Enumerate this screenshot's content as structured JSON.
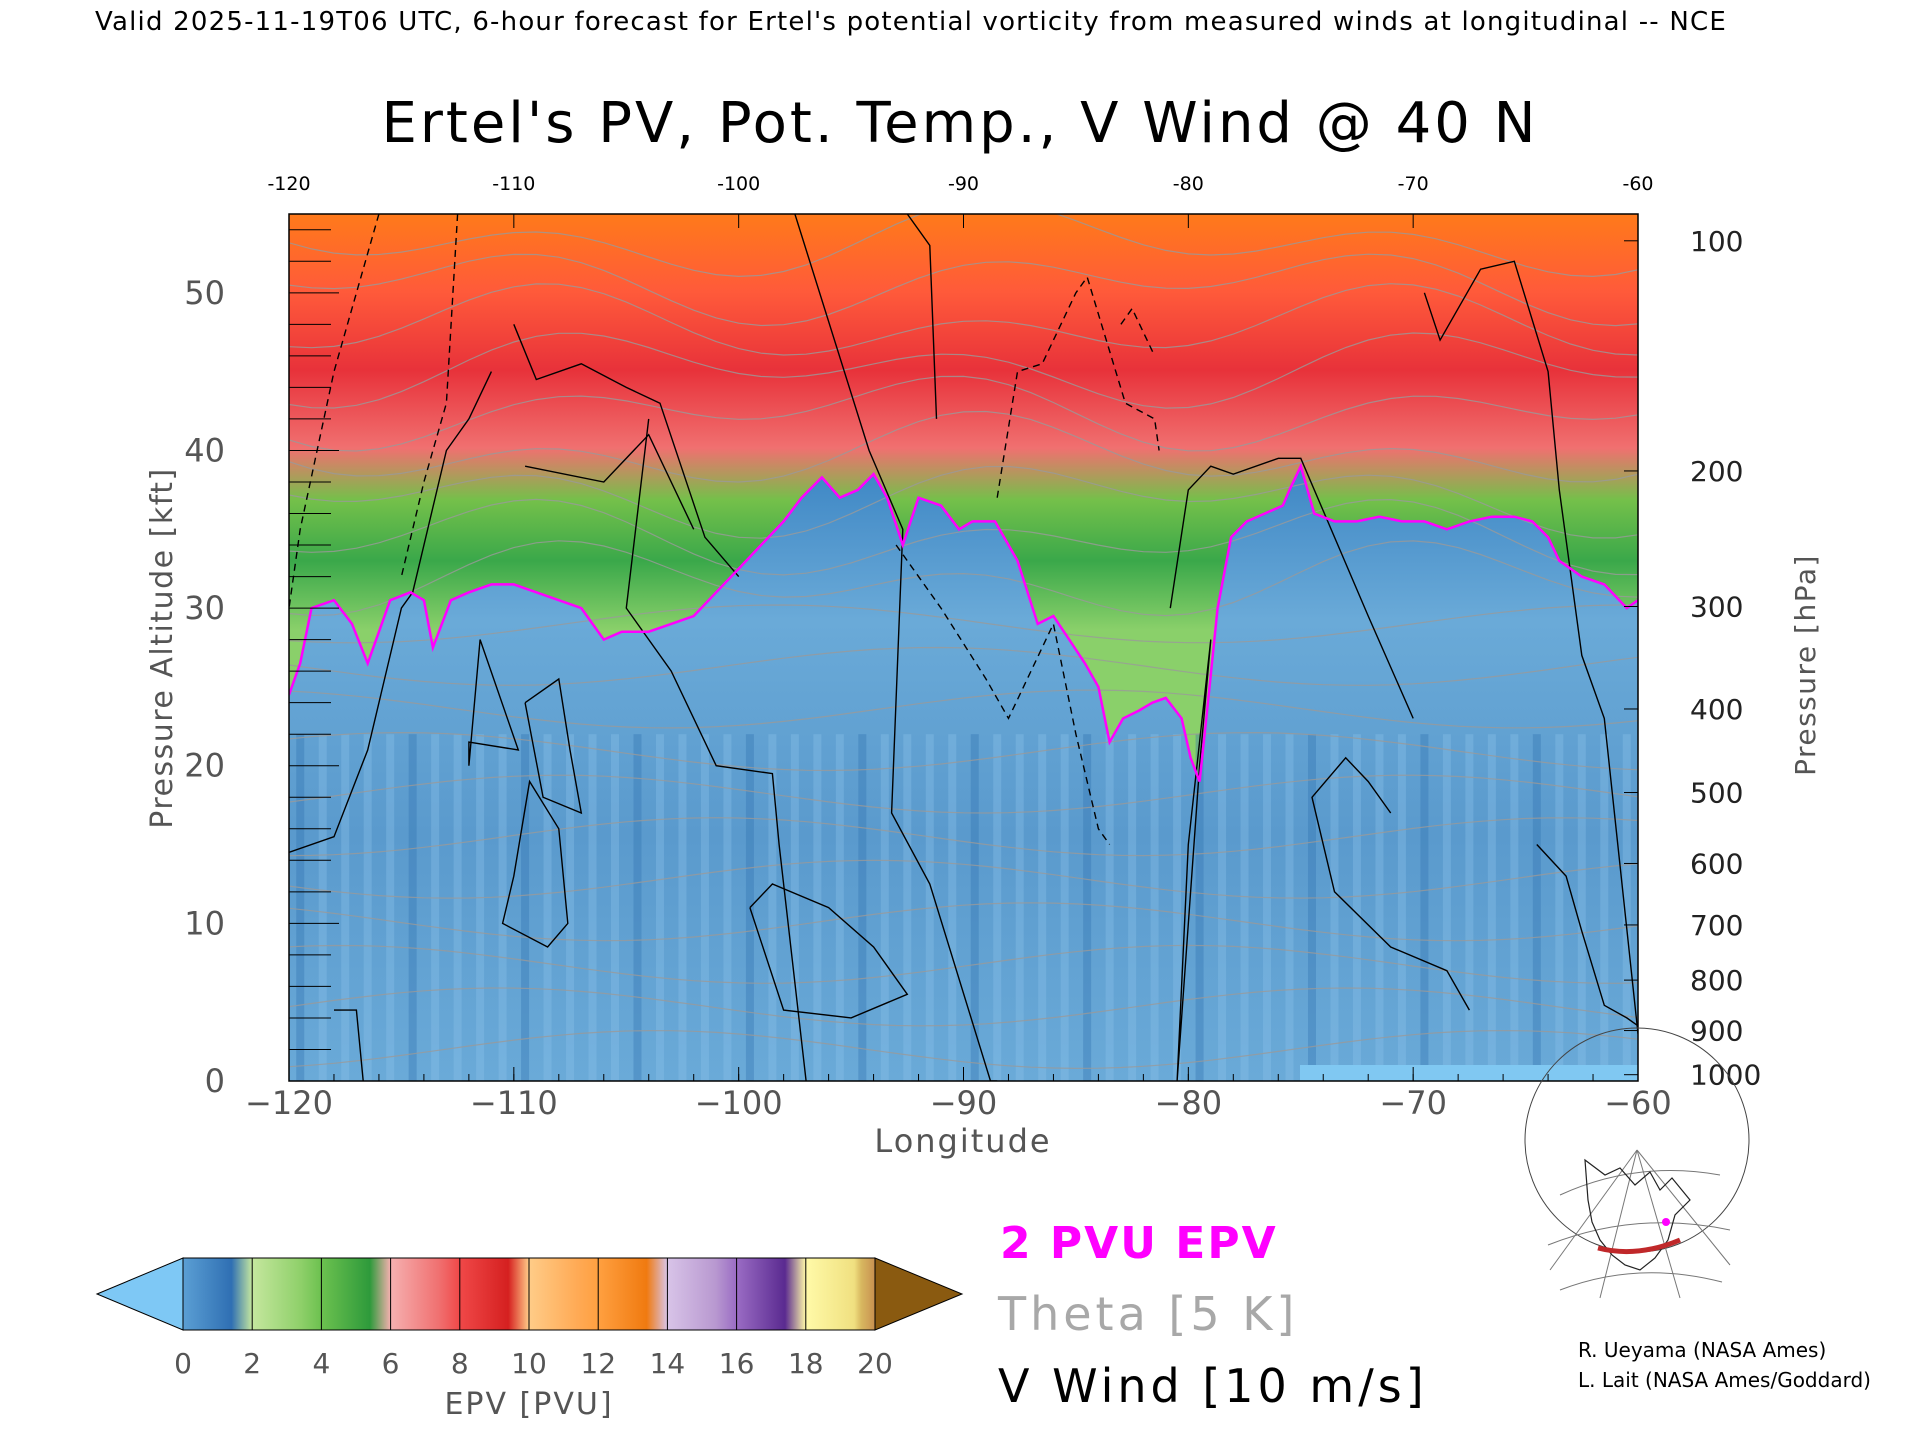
{
  "header": {
    "valid_text": "Valid 2025-11-19T06 UTC, 6-hour forecast for Ertel's potential vorticity from measured winds at longitudinal -- NCE"
  },
  "credits": {
    "line1": "R. Ueyama (NASA Ames)",
    "line2": "L. Lait (NASA Ames/Goddard)"
  },
  "legend": {
    "epv_line": "2 PVU EPV",
    "theta_line": "Theta [5 K]",
    "vwind_line": "V Wind [10 m/s]",
    "epv_color": "#ff00ff",
    "theta_color": "#a0a0a0",
    "vwind_color": "#000000"
  },
  "colorbar": {
    "label": "EPV [PVU]",
    "ticks": [
      "0",
      "2",
      "4",
      "6",
      "8",
      "10",
      "12",
      "14",
      "16",
      "18",
      "20"
    ],
    "under_color": "#7ec8f5",
    "over_color": "#8a5a10"
  },
  "chart_data": {
    "type": "heatmap",
    "title": "Ertel's PV, Pot. Temp., V Wind @ 40 N",
    "xlabel": "Longitude",
    "ylabel": "Pressure Altitude [kft]",
    "ylabel_right": "Pressure [hPa]",
    "xlim": [
      -120,
      -60
    ],
    "ylim": [
      0,
      55
    ],
    "x_ticks": [
      "-120",
      "-110",
      "-100",
      "-90",
      "-80",
      "-70",
      "-60"
    ],
    "top_x_ticks": [
      "-120",
      "-110",
      "-100",
      "-90",
      "-80",
      "-70",
      "-60"
    ],
    "y_ticks": [
      "0",
      "10",
      "20",
      "30",
      "40",
      "50"
    ],
    "pressure_ticks": [
      {
        "label": "100",
        "kft": 53.3
      },
      {
        "label": "200",
        "kft": 38.7
      },
      {
        "label": "300",
        "kft": 30.1
      },
      {
        "label": "400",
        "kft": 23.6
      },
      {
        "label": "500",
        "kft": 18.3
      },
      {
        "label": "600",
        "kft": 13.8
      },
      {
        "label": "700",
        "kft": 9.9
      },
      {
        "label": "800",
        "kft": 6.4
      },
      {
        "label": "900",
        "kft": 3.2
      },
      {
        "label": "1000",
        "kft": 0.4
      }
    ],
    "tropopause_2pvu": {
      "lon": [
        -120,
        -119.5,
        -119,
        -118,
        -117.2,
        -116.5,
        -115.5,
        -114.6,
        -114,
        -113.6,
        -112.8,
        -112,
        -111,
        -110,
        -109,
        -108,
        -107,
        -106,
        -105.2,
        -104,
        -103,
        -102,
        -101,
        -100,
        -99,
        -98,
        -97.2,
        -96.3,
        -95.5,
        -94.7,
        -94,
        -93.4,
        -92.7,
        -92,
        -91,
        -90.2,
        -89.6,
        -88.6,
        -87.6,
        -86.7,
        -86,
        -85.3,
        -84.6,
        -84,
        -83.5,
        -82.9,
        -82.2,
        -81.6,
        -81,
        -80.3,
        -79.9,
        -79.5,
        -79.2,
        -78.7,
        -78.1,
        -77.4,
        -76.6,
        -75.8,
        -75.5,
        -75,
        -74.4,
        -73.5,
        -72.5,
        -71.5,
        -70.5,
        -69.5,
        -68.5,
        -67.5,
        -66.5,
        -65.5,
        -64.7,
        -64,
        -63.5,
        -62.5,
        -61.5,
        -60.5,
        -60
      ],
      "kft": [
        24.5,
        26.5,
        30,
        30.5,
        29,
        26.5,
        30.5,
        31,
        30.5,
        27.5,
        30.5,
        31,
        31.5,
        31.5,
        31,
        30.5,
        30,
        28,
        28.5,
        28.5,
        29,
        29.5,
        31,
        32.5,
        34,
        35.5,
        37,
        38.3,
        37,
        37.5,
        38.5,
        37,
        34,
        37,
        36.5,
        35,
        35.5,
        35.5,
        33,
        29,
        29.5,
        28,
        26.5,
        25,
        21.5,
        23,
        23.5,
        24,
        24.3,
        23,
        20.5,
        19,
        23,
        30,
        34.5,
        35.5,
        36,
        36.5,
        37.5,
        39,
        36,
        35.5,
        35.5,
        35.8,
        35.5,
        35.5,
        35,
        35.5,
        35.8,
        35.8,
        35.5,
        34.5,
        33,
        32,
        31.5,
        30,
        30.5
      ]
    },
    "v_wind_zero_contours": [
      {
        "lon": [
          -120,
          -118,
          -116.5,
          -115,
          -114.5,
          -113,
          -112,
          -111
        ],
        "kft": [
          14.5,
          15.5,
          21,
          30,
          31,
          40,
          42,
          45
        ]
      },
      {
        "lon": [
          -118,
          -117,
          -116.7
        ],
        "kft": [
          4.5,
          4.5,
          0
        ]
      },
      {
        "lon": [
          -110,
          -109,
          -107,
          -105,
          -103.5,
          -101.5,
          -100
        ],
        "kft": [
          48,
          44.5,
          45.5,
          44,
          43,
          34.5,
          32
        ]
      },
      {
        "lon": [
          -109.5,
          -106,
          -104,
          -102
        ],
        "kft": [
          39,
          38,
          41,
          35
        ]
      },
      {
        "lon": [
          -104,
          -105,
          -103,
          -101,
          -98.5,
          -98.2,
          -97
        ],
        "kft": [
          42,
          30,
          26,
          20,
          19.5,
          15,
          0
        ]
      },
      {
        "lon": [
          -99.5,
          -98.5,
          -96,
          -94,
          -92.5,
          -95,
          -98,
          -99.5
        ],
        "kft": [
          11,
          12.5,
          11,
          8.5,
          5.5,
          4,
          4.5,
          11
        ]
      },
      {
        "lon": [
          -97.5,
          -94.2,
          -92.7,
          -93.2,
          -91.5,
          -88.8,
          -88.5
        ],
        "kft": [
          55,
          40,
          35,
          17,
          12.5,
          0,
          0
        ]
      },
      {
        "lon": [
          -92.5,
          -91.5,
          -91.2
        ],
        "kft": [
          55,
          53,
          42
        ]
      },
      {
        "lon": [
          -80.8,
          -80,
          -79,
          -78,
          -76,
          -75,
          -72,
          -70
        ],
        "kft": [
          30,
          37.5,
          39,
          38.5,
          39.5,
          39.5,
          29.5,
          23
        ]
      },
      {
        "lon": [
          -80.5,
          -79.5,
          -79,
          -80,
          -80.5
        ],
        "kft": [
          0,
          20,
          28,
          15,
          0
        ]
      },
      {
        "lon": [
          -71,
          -72,
          -73,
          -74.5,
          -73.5,
          -71,
          -68.5,
          -67.5
        ],
        "kft": [
          17,
          19,
          20.5,
          18,
          12,
          8.5,
          7,
          4.5
        ]
      },
      {
        "lon": [
          -69.5,
          -68.8,
          -67,
          -65.5,
          -64,
          -63.5,
          -62.5,
          -61.5,
          -60
        ],
        "kft": [
          50,
          47,
          51.5,
          52,
          45,
          37.5,
          27,
          23,
          3
        ]
      },
      {
        "lon": [
          -64.5,
          -63.2,
          -62.5,
          -61.5,
          -60.5,
          -60
        ],
        "kft": [
          15,
          13,
          9.5,
          4.8,
          4,
          3.5
        ]
      }
    ],
    "v_wind_neg10_contours": [
      {
        "lon": [
          -116,
          -118,
          -119.5,
          -120
        ],
        "kft": [
          55,
          45,
          35,
          30
        ]
      },
      {
        "lon": [
          -112.5,
          -113,
          -114,
          -115
        ],
        "kft": [
          55,
          43,
          38,
          32
        ]
      },
      {
        "lon": [
          -93,
          -91,
          -89,
          -88,
          -87,
          -86,
          -85,
          -84,
          -83.5
        ],
        "kft": [
          34,
          30,
          25.5,
          23,
          26,
          29,
          22,
          16,
          15
        ]
      },
      {
        "lon": [
          -88.5,
          -87.6,
          -86.5,
          -85,
          -84.5,
          -82.8,
          -81.5,
          -81.3
        ],
        "kft": [
          37,
          45,
          45.5,
          50,
          51,
          43,
          42,
          40
        ]
      },
      {
        "lon": [
          -83,
          -82.5,
          -81.5
        ],
        "kft": [
          48,
          49,
          46
        ]
      }
    ],
    "v_wind_pos10_contours": [
      {
        "lon": [
          -112,
          -111.5,
          -109.8,
          -112,
          -112
        ],
        "kft": [
          20,
          28,
          21,
          21.5,
          20
        ]
      },
      {
        "lon": [
          -109.5,
          -108,
          -107.5,
          -107,
          -108.7,
          -109.5
        ],
        "kft": [
          24,
          25.5,
          21,
          17,
          18,
          24
        ]
      },
      {
        "lon": [
          -110,
          -109.3,
          -108,
          -107.6,
          -108.5,
          -110.5,
          -110
        ],
        "kft": [
          13,
          19,
          16,
          10,
          8.5,
          10,
          13
        ]
      }
    ],
    "theta_levels_K": [
      290,
      295,
      300,
      305,
      310,
      315,
      320,
      325,
      330,
      335,
      340,
      345,
      350,
      360,
      370,
      380,
      390,
      400,
      410,
      420
    ],
    "epv_fields_note_range": [
      0,
      20
    ],
    "inset_map_section_lat": 40
  }
}
